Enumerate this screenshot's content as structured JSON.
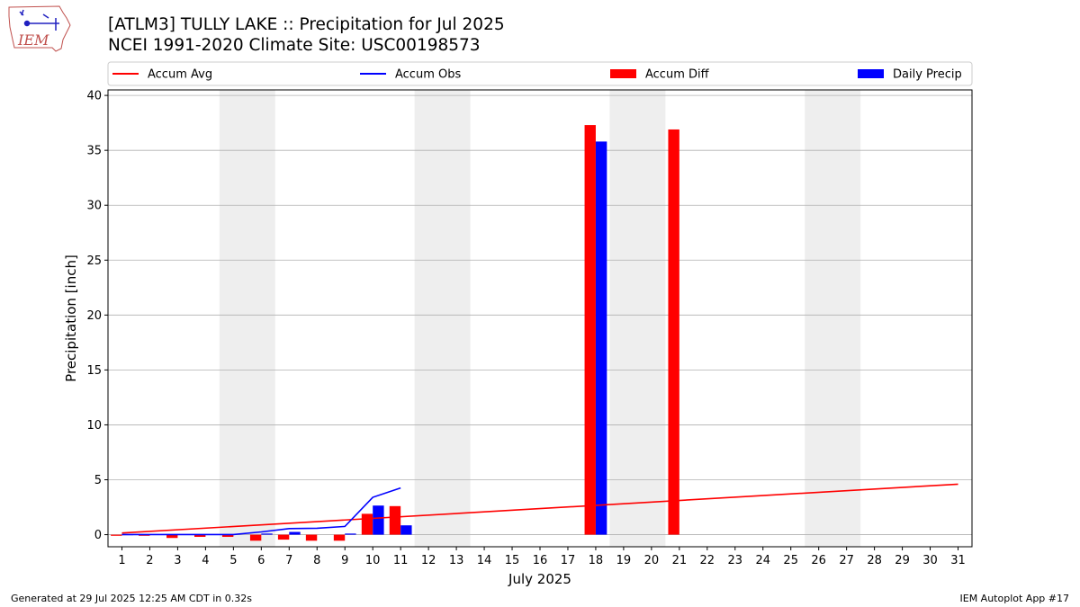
{
  "header": {
    "title_line1": "[ATLM3] TULLY LAKE :: Precipitation for Jul 2025",
    "title_line2": "NCEI 1991-2020 Climate Site: USC00198573"
  },
  "logo": {
    "text": "IEM",
    "icon": "iem-iowa-state-logo"
  },
  "footer": {
    "left": "Generated at 29 Jul 2025 12:25 AM CDT in 0.32s",
    "right": "IEM Autoplot App #17"
  },
  "colors": {
    "avg": "#ff0000",
    "obs": "#0000ff",
    "diff": "#ff0000",
    "daily": "#0000ff",
    "weekend": "#eeeeee",
    "grid": "#b0b0b0"
  },
  "chart_data": {
    "type": "bar",
    "xlabel": "July 2025",
    "ylabel": "Precipitation [inch]",
    "xlim": [
      0.5,
      31.5
    ],
    "ylim": [
      -1.1,
      40.5
    ],
    "x_ticks": [
      1,
      2,
      3,
      4,
      5,
      6,
      7,
      8,
      9,
      10,
      11,
      12,
      13,
      14,
      15,
      16,
      17,
      18,
      19,
      20,
      21,
      22,
      23,
      24,
      25,
      26,
      27,
      28,
      29,
      30,
      31
    ],
    "y_ticks": [
      0,
      5,
      10,
      15,
      20,
      25,
      30,
      35,
      40
    ],
    "grid": "horizontal",
    "legend_position": "top",
    "weekend_spans": [
      [
        5,
        6
      ],
      [
        12,
        13
      ],
      [
        19,
        20
      ],
      [
        26,
        27
      ]
    ],
    "series": [
      {
        "name": "Accum Avg",
        "kind": "line",
        "x": [
          1,
          31
        ],
        "values": [
          0.15,
          4.6
        ]
      },
      {
        "name": "Accum Obs",
        "kind": "line",
        "x": [
          1,
          2,
          3,
          4,
          5,
          6,
          7,
          8,
          9,
          10,
          11
        ],
        "values": [
          0.01,
          0.01,
          0.01,
          0.01,
          0.01,
          0.25,
          0.55,
          0.58,
          0.75,
          3.4,
          4.25
        ]
      },
      {
        "name": "Accum Diff",
        "kind": "bar",
        "x": [
          1,
          2,
          3,
          4,
          5,
          6,
          7,
          8,
          9,
          10,
          11,
          18,
          21
        ],
        "values": [
          -0.1,
          -0.1,
          -0.3,
          -0.2,
          -0.2,
          -0.55,
          -0.45,
          -0.55,
          -0.55,
          1.9,
          2.6,
          37.3,
          36.9
        ]
      },
      {
        "name": "Daily Precip",
        "kind": "bar",
        "x": [
          1,
          6,
          7,
          9,
          10,
          11,
          18
        ],
        "values": [
          0.02,
          0.1,
          0.25,
          0.1,
          2.65,
          0.85,
          35.8
        ]
      }
    ]
  }
}
